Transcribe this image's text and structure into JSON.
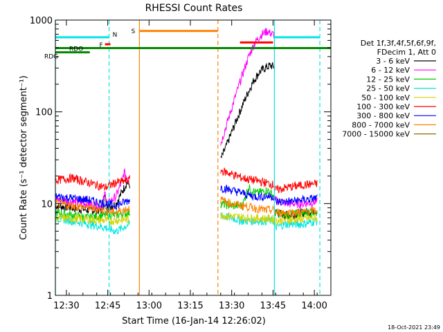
{
  "chart_data": {
    "type": "line",
    "title": "RHESSI Count Rates",
    "xlabel": "Start Time (16-Jan-14 12:26:02)",
    "ylabel": "Count Rate (s⁻¹ detector segment⁻¹)",
    "yscale": "log",
    "xlim_minutes_from_1226": [
      0,
      100
    ],
    "ylim": [
      1,
      1000
    ],
    "x_ticks": [
      {
        "label": "12:30",
        "minutes": 4
      },
      {
        "label": "12:45",
        "minutes": 19
      },
      {
        "label": "13:00",
        "minutes": 34
      },
      {
        "label": "13:15",
        "minutes": 49
      },
      {
        "label": "13:30",
        "minutes": 64
      },
      {
        "label": "13:45",
        "minutes": 79
      },
      {
        "label": "14:00",
        "minutes": 94
      }
    ],
    "y_ticks": [
      {
        "label": "1",
        "value": 1
      },
      {
        "label": "10",
        "value": 10
      },
      {
        "label": "100",
        "value": 100
      },
      {
        "label": "1000",
        "value": 1000
      }
    ],
    "legend": {
      "placement": "right",
      "header": [
        "Det 1f,3f,4f,5f,6f,9f,",
        "FDecim 1, Att 0"
      ],
      "entries": [
        {
          "label": "3 - 6 keV",
          "color": "#000000"
        },
        {
          "label": "6 - 12 keV",
          "color": "#ff00ff"
        },
        {
          "label": "12 - 25 keV",
          "color": "#00cc00"
        },
        {
          "label": "25 - 50 keV",
          "color": "#00e5e5"
        },
        {
          "label": "50 - 100 keV",
          "color": "#d4d400"
        },
        {
          "label": "100 - 300 keV",
          "color": "#ff0000"
        },
        {
          "label": "300 - 800 keV",
          "color": "#0000ff"
        },
        {
          "label": "800 - 7000 keV",
          "color": "#ff8000"
        },
        {
          "label": "7000 - 15000 keV",
          "color": "#8b6b00"
        }
      ]
    },
    "series": [
      {
        "name": "3 - 6 keV",
        "color": "#000000",
        "segments": [
          {
            "x": [
              0,
              6,
              12,
              17,
              18,
              19,
              22,
              25,
              26,
              27
            ],
            "y": [
              9.5,
              9.0,
              8.5,
              8.5,
              12,
              9,
              10,
              15,
              17,
              16
            ]
          },
          {
            "x": [
              60,
              62,
              64,
              66,
              68,
              70,
              72,
              74,
              76,
              78,
              79.5
            ],
            "y": [
              30,
              42,
              60,
              85,
              120,
              165,
              220,
              270,
              300,
              320,
              310
            ]
          },
          {
            "x": [
              79.5,
              84,
              90,
              95
            ],
            "y": [
              8,
              7.5,
              8,
              8.5
            ]
          }
        ]
      },
      {
        "name": "6 - 12 keV",
        "color": "#ff00ff",
        "segments": [
          {
            "x": [
              0,
              6,
              12,
              17,
              18,
              19,
              22,
              24,
              25,
              26,
              27
            ],
            "y": [
              11,
              10.5,
              10,
              9.5,
              13,
              10,
              12,
              17,
              22,
              19,
              22
            ]
          },
          {
            "x": [
              60,
              62,
              64,
              66,
              68,
              70,
              72,
              74,
              76,
              77,
              78,
              79.5
            ],
            "y": [
              45,
              70,
              110,
              170,
              260,
              390,
              540,
              660,
              740,
              760,
              720,
              690
            ]
          },
          {
            "x": [
              79.5,
              84,
              90,
              95
            ],
            "y": [
              11,
              10,
              10,
              10.5
            ]
          }
        ]
      },
      {
        "name": "12 - 25 keV",
        "color": "#00cc00",
        "segments": [
          {
            "x": [
              0,
              6,
              12,
              18,
              22,
              27
            ],
            "y": [
              8,
              7.5,
              7,
              7.5,
              7.5,
              8
            ]
          },
          {
            "x": [
              60,
              64,
              68,
              70,
              73,
              77,
              79.5
            ],
            "y": [
              10,
              9.5,
              9.5,
              15,
              13,
              14,
              12
            ]
          },
          {
            "x": [
              79.5,
              84,
              90,
              95
            ],
            "y": [
              8,
              7.5,
              8,
              8
            ]
          }
        ]
      },
      {
        "name": "25 - 50 keV",
        "color": "#00e5e5",
        "segments": [
          {
            "x": [
              0,
              6,
              12,
              18,
              22,
              27
            ],
            "y": [
              7,
              6.5,
              6,
              5.5,
              5,
              6
            ]
          },
          {
            "x": [
              60,
              64,
              68,
              72,
              76,
              79.5
            ],
            "y": [
              7.5,
              7,
              6.5,
              6.5,
              6.5,
              6.5
            ]
          },
          {
            "x": [
              79.5,
              84,
              90,
              95
            ],
            "y": [
              5.5,
              6,
              6,
              6.5
            ]
          }
        ]
      },
      {
        "name": "50 - 100 keV",
        "color": "#d4d400",
        "segments": [
          {
            "x": [
              0,
              10,
              20,
              27
            ],
            "y": [
              7,
              6.8,
              6.5,
              6.8
            ]
          },
          {
            "x": [
              60,
              70,
              79.5
            ],
            "y": [
              7.5,
              7,
              6.8
            ]
          },
          {
            "x": [
              79.5,
              90,
              95
            ],
            "y": [
              6.5,
              6.8,
              7
            ]
          }
        ]
      },
      {
        "name": "100 - 300 keV",
        "color": "#ff0000",
        "segments": [
          {
            "x": [
              0,
              6,
              12,
              18,
              22,
              27
            ],
            "y": [
              18,
              19,
              17,
              15,
              17,
              18
            ]
          },
          {
            "x": [
              60,
              64,
              68,
              72,
              76,
              79.5
            ],
            "y": [
              23,
              21,
              19,
              18,
              17,
              16
            ]
          },
          {
            "x": [
              79.5,
              84,
              90,
              95
            ],
            "y": [
              14,
              15,
              16,
              16.5
            ]
          }
        ]
      },
      {
        "name": "300 - 800 keV",
        "color": "#0000ff",
        "segments": [
          {
            "x": [
              0,
              6,
              12,
              18,
              22,
              27
            ],
            "y": [
              12,
              11.5,
              11,
              10,
              9.5,
              11
            ]
          },
          {
            "x": [
              60,
              64,
              68,
              72,
              76,
              79.5
            ],
            "y": [
              15,
              14,
              13,
              12,
              12,
              12
            ]
          },
          {
            "x": [
              79.5,
              84,
              90,
              95
            ],
            "y": [
              10.5,
              10.5,
              11,
              11.5
            ]
          }
        ]
      },
      {
        "name": "800 - 7000 keV",
        "color": "#ff8000",
        "segments": [
          {
            "x": [
              0,
              6,
              12,
              18,
              22,
              27
            ],
            "y": [
              10,
              9.5,
              9,
              8.5,
              8,
              9
            ]
          },
          {
            "x": [
              60,
              64,
              68,
              72,
              76,
              79.5
            ],
            "y": [
              11,
              10,
              9.5,
              9,
              8.5,
              8.5
            ]
          },
          {
            "x": [
              79.5,
              84,
              90,
              95
            ],
            "y": [
              8,
              8,
              8,
              8.5
            ]
          }
        ]
      }
    ],
    "time_markers": [
      {
        "minutes": 0,
        "color": "#00e5e5",
        "style": "solid"
      },
      {
        "minutes": 19.5,
        "color": "#00e5e5",
        "style": "dashed"
      },
      {
        "minutes": 30.5,
        "color": "#ff8000",
        "style": "solid"
      },
      {
        "minutes": 59,
        "color": "#ff8000",
        "style": "dashed"
      },
      {
        "minutes": 79.5,
        "color": "#00e5e5",
        "style": "solid"
      },
      {
        "minutes": 96,
        "color": "#00e5e5",
        "style": "dashed"
      }
    ],
    "flag_bars": [
      {
        "label": "",
        "color": "#00e5e5",
        "x": [
          0,
          19.5
        ],
        "y": 650
      },
      {
        "label": "N",
        "color": "#00e5e5",
        "x": [
          19.5,
          19.5
        ],
        "y": 650
      },
      {
        "label": "F",
        "color": "#ff0000",
        "x": [
          18,
          20
        ],
        "y": 545
      },
      {
        "label": "S",
        "color": "#ff8000",
        "x": [
          30.5,
          59
        ],
        "y": 760
      },
      {
        "label": "",
        "color": "#ff0000",
        "x": [
          67,
          79
        ],
        "y": 570
      },
      {
        "label": "",
        "color": "#00e5e5",
        "x": [
          79.5,
          96
        ],
        "y": 650
      },
      {
        "label": "",
        "color": "#008800",
        "x": [
          0,
          100
        ],
        "y": 495
      },
      {
        "label": "RDO",
        "color": "#008800",
        "x": [
          1,
          12.5
        ],
        "y": 495
      },
      {
        "label": "RDG",
        "color": "#008800",
        "x": [
          0,
          12.5
        ],
        "y": 445
      }
    ],
    "timestamp": "18-Oct-2021 23:49"
  }
}
